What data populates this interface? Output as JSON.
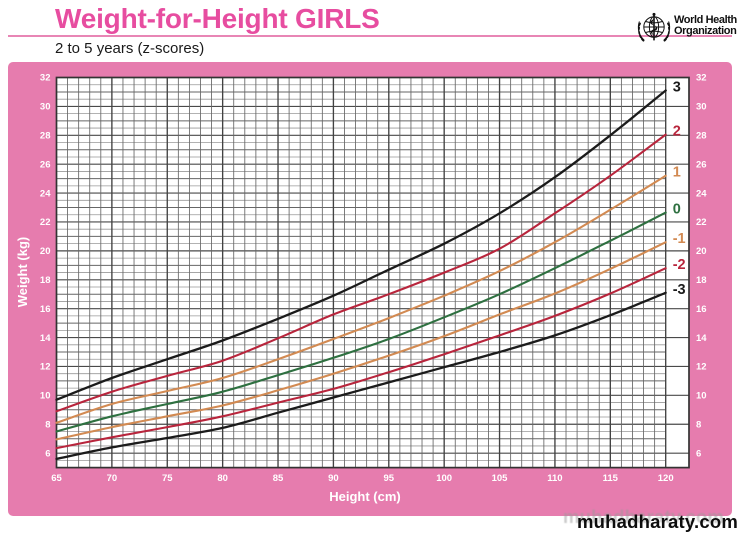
{
  "header": {
    "title": "Weight-for-Height GIRLS",
    "subtitle": "2 to 5 years (z-scores)",
    "logo_line1": "World Health",
    "logo_line2": "Organization"
  },
  "footer": {
    "watermark": "muhadharaty.com"
  },
  "colors": {
    "band_pink": "#e67cae",
    "title_pink": "#e74da0",
    "rule_pink": "#e886b5",
    "plot_white": "#ffffff",
    "plot_border": "#333333",
    "grid_minor": "#999999",
    "grid_1kg": "#666666",
    "grid_2kg": "#4a4a4a",
    "grid_5cm": "#424242",
    "tick_text": "#ffffff",
    "z3_black": "#1b1b1b",
    "z2_red": "#b8253c",
    "z1_orange": "#d28a52",
    "z0_green": "#2e7040"
  },
  "chart_data": {
    "type": "line",
    "title": "Weight-for-Height GIRLS",
    "subtitle": "2 to 5 years (z-scores)",
    "xlabel": "Height (cm)",
    "ylabel": "Weight (kg)",
    "xlim": [
      65,
      120
    ],
    "ylim": [
      5,
      32
    ],
    "x_major_step": 5,
    "x_minor_step": 1,
    "y_label_step": 2,
    "y_minor_step": 0.5,
    "grid": "on",
    "legend_position": "right-end-of-curves",
    "x_tick_labels": [
      65,
      70,
      75,
      80,
      85,
      90,
      95,
      100,
      105,
      110,
      115,
      120
    ],
    "y_tick_labels": [
      6,
      8,
      10,
      12,
      14,
      16,
      18,
      20,
      22,
      24,
      26,
      28,
      30,
      32
    ],
    "x": [
      65,
      70,
      75,
      80,
      85,
      90,
      95,
      100,
      105,
      110,
      115,
      120
    ],
    "series": [
      {
        "name": "3",
        "zscore": "+3",
        "color_key": "z3_black",
        "values": [
          9.7,
          11.2,
          12.5,
          13.8,
          15.3,
          16.9,
          18.7,
          20.5,
          22.6,
          25.1,
          28.0,
          31.1
        ]
      },
      {
        "name": "2",
        "zscore": "+2",
        "color_key": "z2_red",
        "values": [
          8.9,
          10.25,
          11.35,
          12.4,
          13.95,
          15.6,
          17.0,
          18.5,
          20.15,
          22.6,
          25.2,
          28.05
        ]
      },
      {
        "name": "1",
        "zscore": "+1",
        "color_key": "z1_orange",
        "values": [
          8.1,
          9.4,
          10.3,
          11.2,
          12.5,
          13.9,
          15.35,
          16.9,
          18.6,
          20.6,
          22.85,
          25.2
        ]
      },
      {
        "name": "0",
        "zscore": "0",
        "color_key": "z0_green",
        "values": [
          7.5,
          8.55,
          9.4,
          10.25,
          11.4,
          12.6,
          13.9,
          15.4,
          17.0,
          18.8,
          20.7,
          22.65
        ]
      },
      {
        "name": "-1",
        "zscore": "-1",
        "color_key": "z1_orange",
        "values": [
          6.95,
          7.8,
          8.55,
          9.3,
          10.35,
          11.5,
          12.75,
          14.1,
          15.6,
          17.05,
          18.75,
          20.6
        ]
      },
      {
        "name": "-2",
        "zscore": "-2",
        "color_key": "z2_red",
        "values": [
          6.35,
          7.1,
          7.8,
          8.55,
          9.5,
          10.45,
          11.6,
          12.85,
          14.15,
          15.5,
          17.05,
          18.8
        ]
      },
      {
        "name": "-3",
        "zscore": "-3",
        "color_key": "z3_black",
        "values": [
          5.6,
          6.4,
          7.05,
          7.75,
          8.8,
          9.85,
          10.9,
          11.95,
          13.0,
          14.15,
          15.55,
          17.1
        ]
      }
    ]
  }
}
